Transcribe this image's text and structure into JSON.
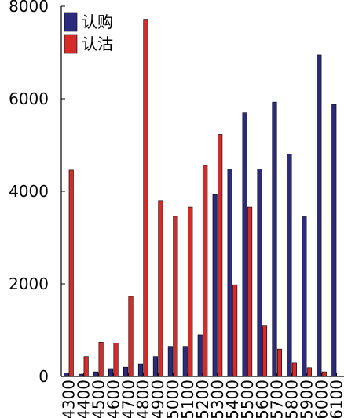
{
  "chart_data": {
    "type": "bar",
    "categories": [
      "4300",
      "4400",
      "4500",
      "4600",
      "4700",
      "4800",
      "4900",
      "5000",
      "5100",
      "5200",
      "5300",
      "5400",
      "5500",
      "5600",
      "5700",
      "5800",
      "5900",
      "6000",
      "6100"
    ],
    "series": [
      {
        "name": "认购",
        "color": "#2b2a7c",
        "values": [
          80,
          50,
          100,
          170,
          200,
          270,
          430,
          650,
          650,
          900,
          3930,
          4480,
          5700,
          4480,
          5930,
          4800,
          3450,
          6950,
          5880
        ]
      },
      {
        "name": "认沽",
        "color": "#d42b2b",
        "values": [
          4460,
          430,
          740,
          720,
          1730,
          7720,
          3800,
          3460,
          3660,
          4560,
          5230,
          1980,
          3660,
          1090,
          590,
          290,
          190,
          100,
          0
        ]
      }
    ],
    "ylim": [
      0,
      8000
    ],
    "yticks": [
      "0",
      "2000",
      "4000",
      "6000",
      "8000"
    ],
    "legend": "top-left",
    "grid": false
  }
}
